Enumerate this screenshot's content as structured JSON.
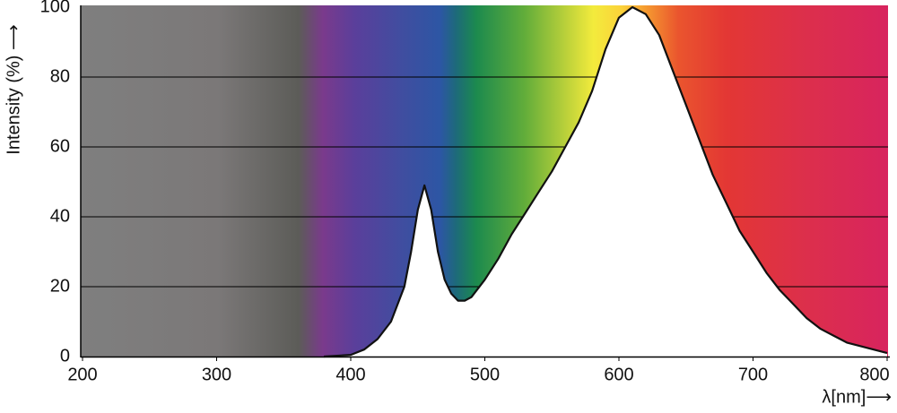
{
  "chart_data": {
    "type": "line",
    "y_label": "Intensity (%) ⟶",
    "x_label": "λ[nm]⟶",
    "x": [
      380,
      400,
      410,
      420,
      430,
      440,
      445,
      450,
      455,
      460,
      465,
      470,
      475,
      480,
      485,
      490,
      500,
      510,
      520,
      530,
      540,
      550,
      560,
      570,
      580,
      590,
      600,
      610,
      620,
      630,
      640,
      650,
      660,
      670,
      680,
      690,
      700,
      710,
      720,
      730,
      740,
      750,
      760,
      770,
      780,
      790,
      800
    ],
    "values": [
      0,
      0.5,
      2,
      5,
      10,
      20,
      30,
      42,
      49,
      42,
      30,
      22,
      18,
      16,
      16,
      17,
      22,
      28,
      35,
      41,
      47,
      53,
      60,
      67,
      76,
      88,
      97,
      100,
      98,
      92,
      82,
      72,
      62,
      52,
      44,
      36,
      30,
      24,
      19,
      15,
      11,
      8,
      6,
      4,
      3,
      2,
      1
    ],
    "color": "#111111",
    "xlim": [
      200,
      800
    ],
    "xticks": [
      200,
      300,
      400,
      500,
      600,
      700,
      800
    ],
    "ylim": [
      0,
      100
    ],
    "yticks": [
      0,
      20,
      40,
      60,
      80,
      100
    ],
    "grid": true
  }
}
